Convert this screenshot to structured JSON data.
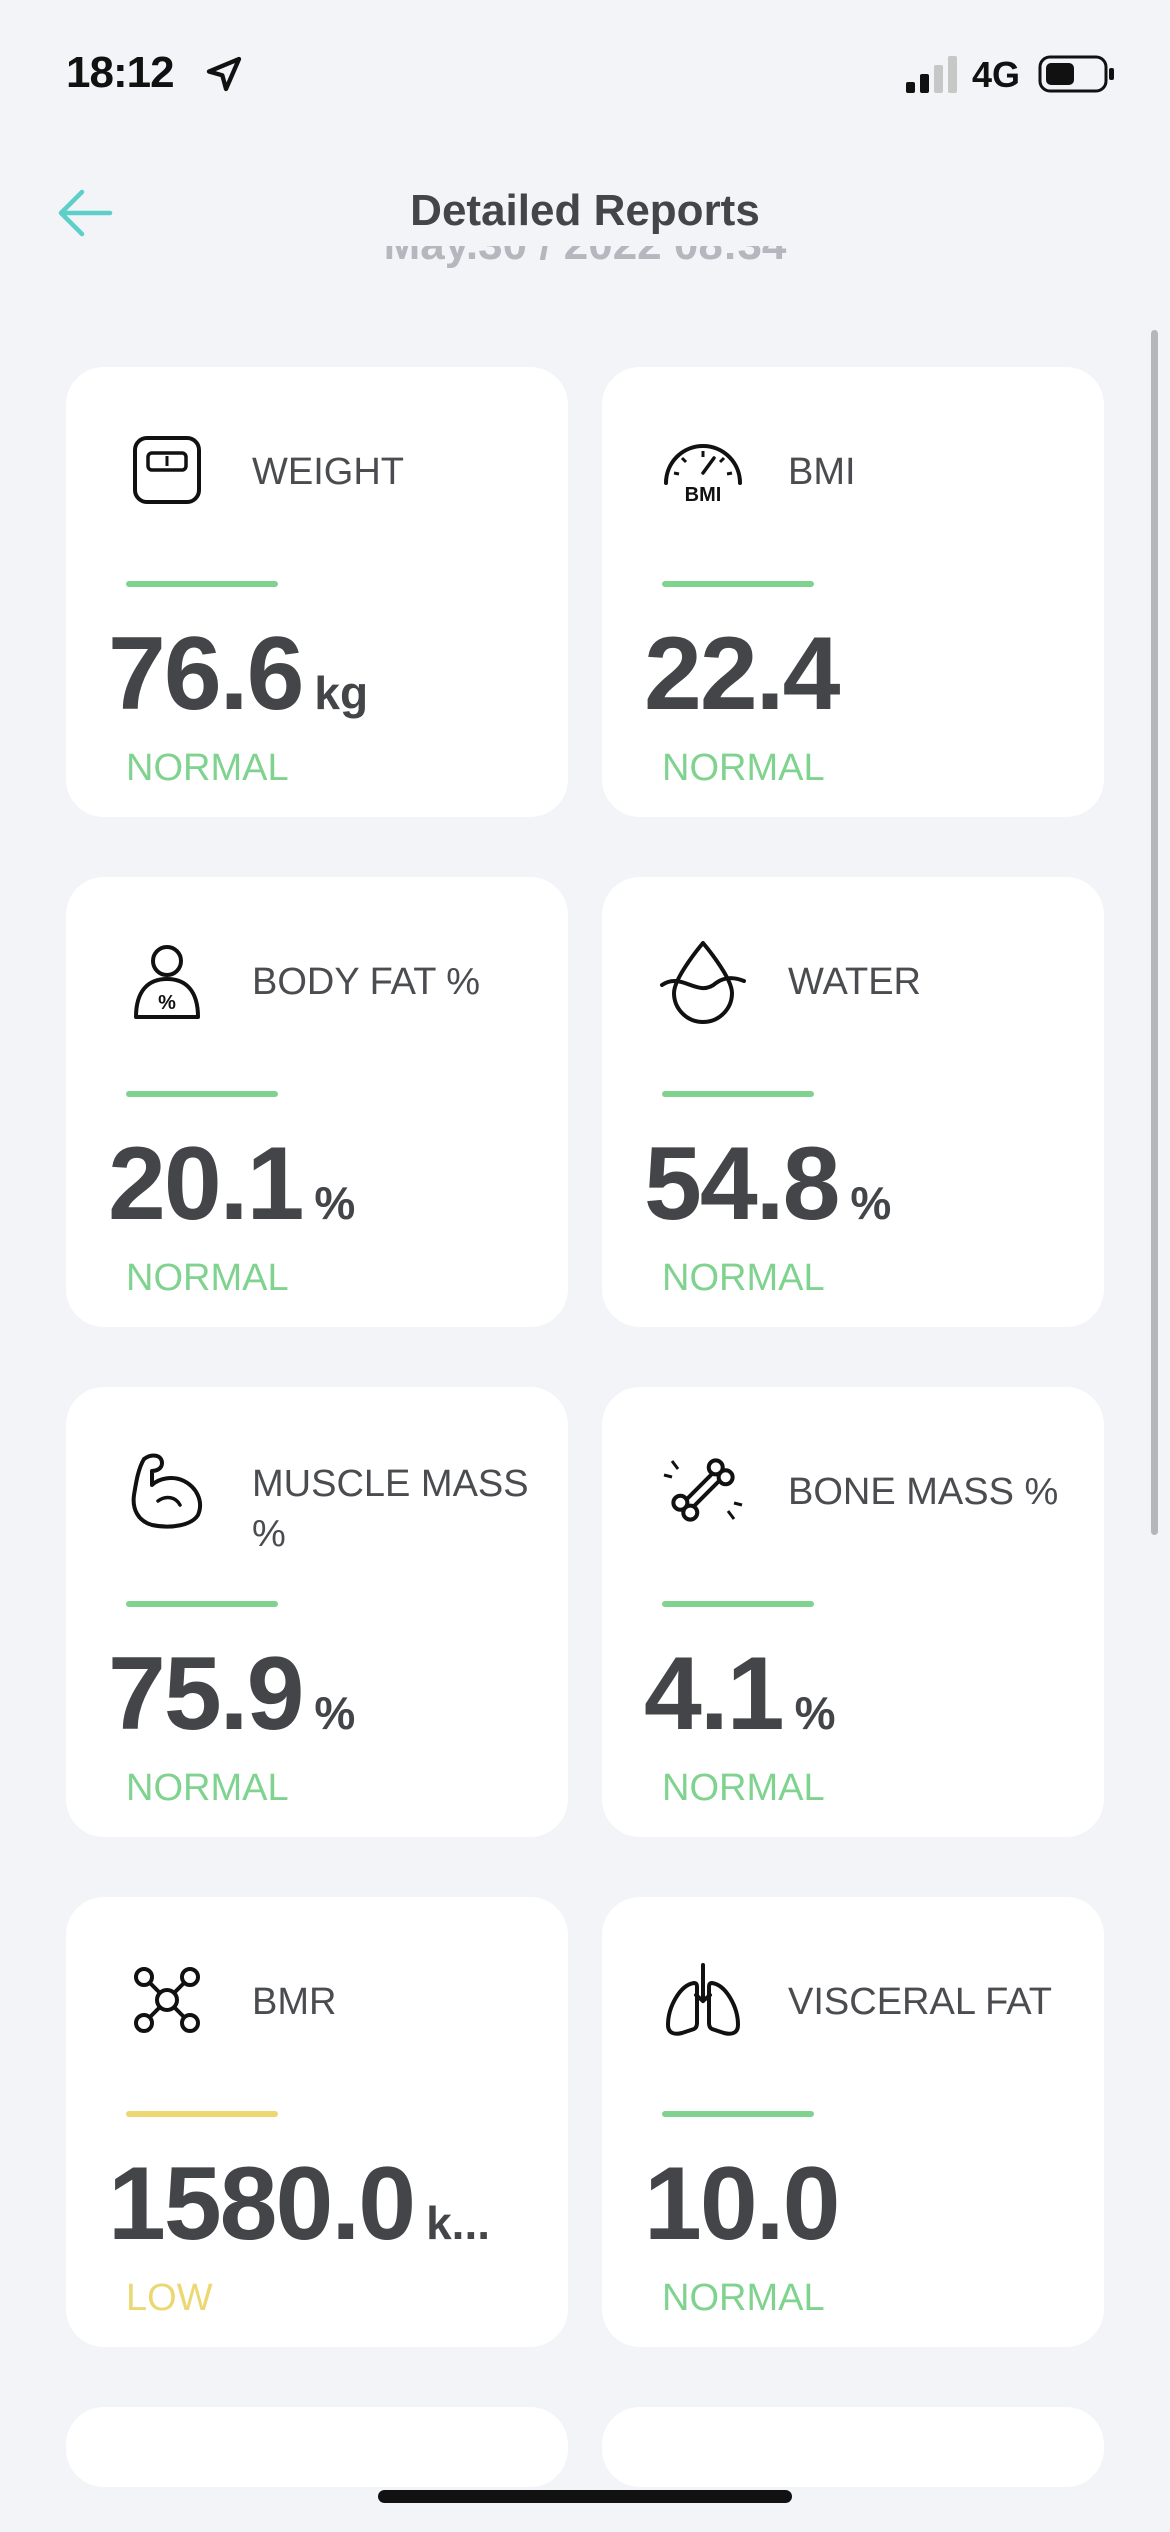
{
  "status_bar": {
    "time": "18:12",
    "network": "4G"
  },
  "nav": {
    "title": "Detailed Reports",
    "date_partial": "May.30 / 2022 08:34"
  },
  "cards": [
    {
      "label": "WEIGHT",
      "value": "76.6",
      "unit": "kg",
      "status": "NORMAL",
      "status_color": "#7fd38f",
      "icon": "scale-icon"
    },
    {
      "label": "BMI",
      "value": "22.4",
      "unit": "",
      "status": "NORMAL",
      "status_color": "#7fd38f",
      "icon": "bmi-gauge-icon",
      "icon_text": "BMI"
    },
    {
      "label": "BODY FAT %",
      "value": "20.1",
      "unit": "%",
      "status": "NORMAL",
      "status_color": "#7fd38f",
      "icon": "body-fat-icon"
    },
    {
      "label": "WATER",
      "value": "54.8",
      "unit": "%",
      "status": "NORMAL",
      "status_color": "#7fd38f",
      "icon": "water-drop-icon"
    },
    {
      "label": "MUSCLE MASS %",
      "value": "75.9",
      "unit": "%",
      "status": "NORMAL",
      "status_color": "#7fd38f",
      "icon": "muscle-icon"
    },
    {
      "label": "BONE MASS %",
      "value": "4.1",
      "unit": "%",
      "status": "NORMAL",
      "status_color": "#7fd38f",
      "icon": "bone-icon"
    },
    {
      "label": "BMR",
      "value": "1580.0",
      "unit": "k...",
      "status": "LOW",
      "status_color": "#ecd873",
      "icon": "molecule-icon"
    },
    {
      "label": "VISCERAL FAT",
      "value": "10.0",
      "unit": "",
      "status": "NORMAL",
      "status_color": "#7fd38f",
      "icon": "lungs-icon"
    }
  ]
}
